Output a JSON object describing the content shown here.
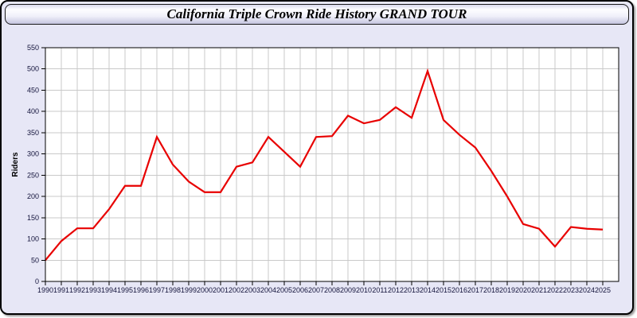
{
  "page": {
    "title": "California Triple Crown Ride History GRAND TOUR"
  },
  "theme": {
    "page_background": "#e7e7f6",
    "header_gradient_top": "#fdfdff",
    "header_gradient_bottom": "#c6c6e0",
    "plot_background": "#ffffff",
    "grid_color": "#c9c9c9",
    "axis_color": "#000000",
    "tick_label_color": "#14143c",
    "line_color": "#e80000"
  },
  "chart_data": {
    "type": "line",
    "title": "California Triple Crown Ride History GRAND TOUR",
    "xlabel": "",
    "ylabel": "Riders",
    "x": [
      1990,
      1991,
      1992,
      1993,
      1994,
      1995,
      1996,
      1997,
      1998,
      1999,
      2000,
      2001,
      2002,
      2003,
      2004,
      2005,
      2006,
      2007,
      2008,
      2009,
      2010,
      2011,
      2012,
      2013,
      2014,
      2015,
      2016,
      2017,
      2018,
      2019,
      2020,
      2021,
      2022,
      2023,
      2024,
      2025
    ],
    "series": [
      {
        "name": "Riders",
        "color": "#e80000",
        "values": [
          50,
          95,
          125,
          125,
          170,
          225,
          225,
          340,
          275,
          235,
          210,
          210,
          270,
          280,
          340,
          305,
          270,
          340,
          342,
          390,
          372,
          380,
          410,
          385,
          495,
          380,
          345,
          315,
          260,
          200,
          135,
          124,
          82,
          128,
          124,
          122
        ]
      }
    ],
    "ylim": [
      0,
      550
    ],
    "ytick_step": 50,
    "grid": true,
    "legend_position": "none"
  }
}
